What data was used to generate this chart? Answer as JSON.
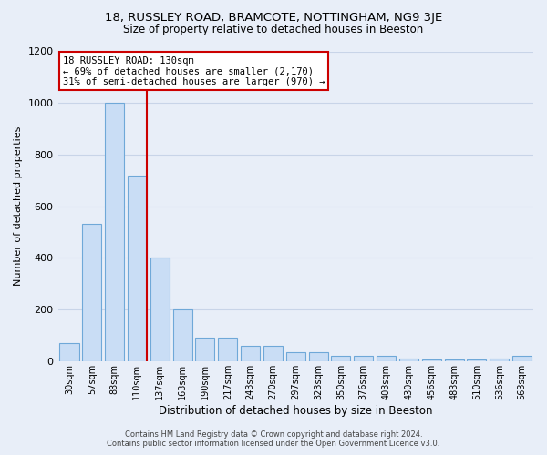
{
  "title_line1": "18, RUSSLEY ROAD, BRAMCOTE, NOTTINGHAM, NG9 3JE",
  "title_line2": "Size of property relative to detached houses in Beeston",
  "xlabel": "Distribution of detached houses by size in Beeston",
  "ylabel": "Number of detached properties",
  "categories": [
    "30sqm",
    "57sqm",
    "83sqm",
    "110sqm",
    "137sqm",
    "163sqm",
    "190sqm",
    "217sqm",
    "243sqm",
    "270sqm",
    "297sqm",
    "323sqm",
    "350sqm",
    "376sqm",
    "403sqm",
    "430sqm",
    "456sqm",
    "483sqm",
    "510sqm",
    "536sqm",
    "563sqm"
  ],
  "values": [
    70,
    530,
    1000,
    720,
    400,
    200,
    90,
    90,
    60,
    60,
    35,
    35,
    20,
    20,
    20,
    10,
    5,
    5,
    5,
    10,
    20
  ],
  "bar_color": "#c9ddf5",
  "bar_edge_color": "#6fa8d8",
  "annotation_line1": "18 RUSSLEY ROAD: 130sqm",
  "annotation_line2": "← 69% of detached houses are smaller (2,170)",
  "annotation_line3": "31% of semi-detached houses are larger (970) →",
  "annotation_box_color": "#ffffff",
  "annotation_box_edge": "#cc0000",
  "red_line_color": "#cc0000",
  "grid_color": "#c8d4e8",
  "background_color": "#e8eef8",
  "footer_line1": "Contains HM Land Registry data © Crown copyright and database right 2024.",
  "footer_line2": "Contains public sector information licensed under the Open Government Licence v3.0.",
  "ylim": [
    0,
    1200
  ],
  "yticks": [
    0,
    200,
    400,
    600,
    800,
    1000,
    1200
  ]
}
